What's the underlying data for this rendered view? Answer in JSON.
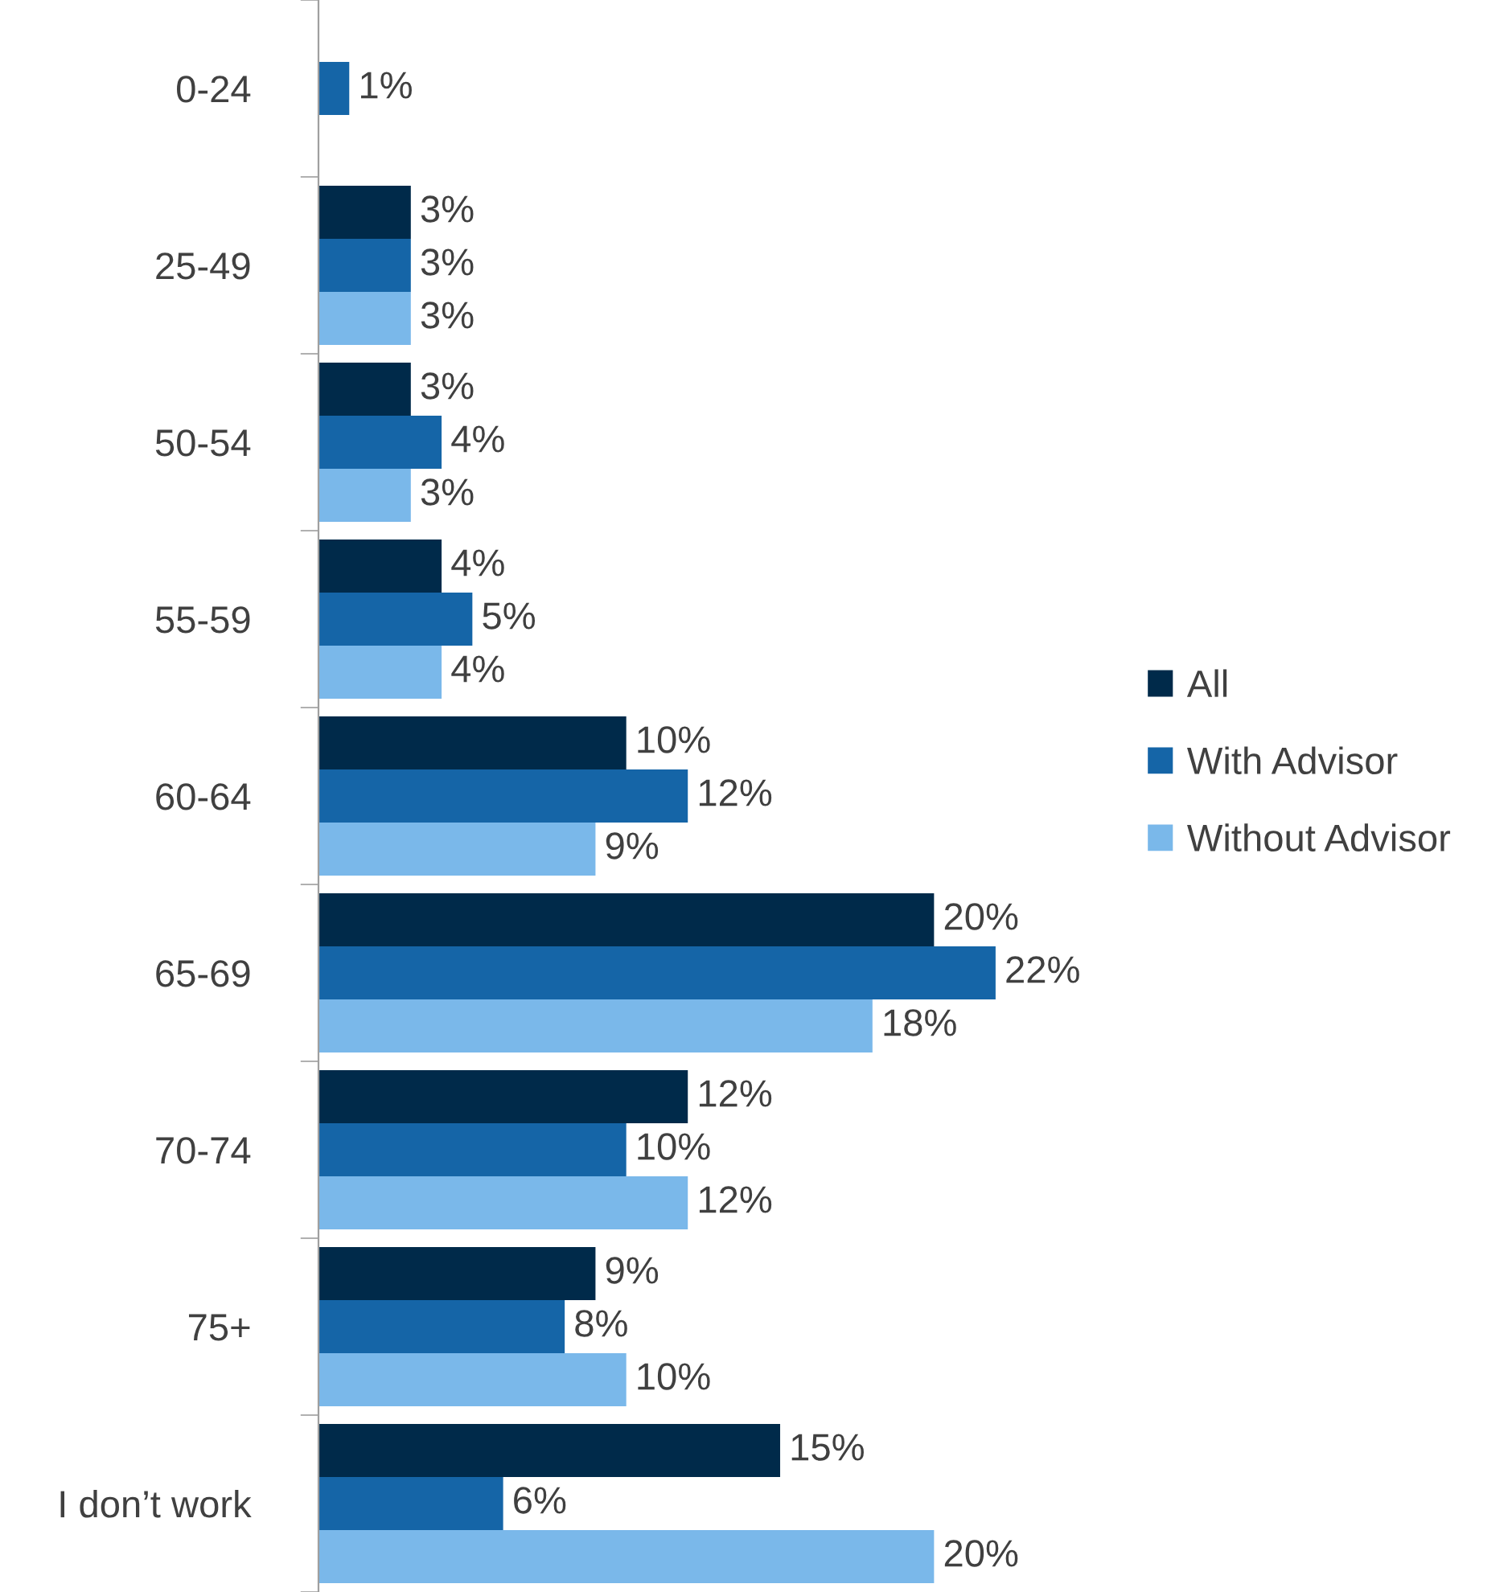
{
  "chart_data": {
    "type": "bar",
    "orientation": "horizontal",
    "categories": [
      "0-24",
      "25-49",
      "50-54",
      "55-59",
      "60-64",
      "65-69",
      "70-74",
      "75+",
      "I don’t work"
    ],
    "series": [
      {
        "name": "All",
        "color": "#002a4a",
        "values": [
          null,
          3,
          3,
          4,
          10,
          20,
          12,
          9,
          15
        ],
        "value_labels": [
          null,
          "3%",
          "3%",
          "4%",
          "10%",
          "20%",
          "12%",
          "9%",
          "15%"
        ]
      },
      {
        "name": "With Advisor",
        "color": "#1565a7",
        "values": [
          1,
          3,
          4,
          5,
          12,
          22,
          10,
          8,
          6
        ],
        "value_labels": [
          "1%",
          "3%",
          "4%",
          "5%",
          "12%",
          "22%",
          "10%",
          "8%",
          "6%"
        ]
      },
      {
        "name": "Without Advisor",
        "color": "#7ab8ea",
        "values": [
          null,
          3,
          3,
          4,
          9,
          18,
          12,
          10,
          20
        ],
        "value_labels": [
          null,
          "3%",
          "3%",
          "4%",
          "9%",
          "18%",
          "12%",
          "10%",
          "20%"
        ]
      }
    ],
    "legend": "right",
    "grid": false
  }
}
